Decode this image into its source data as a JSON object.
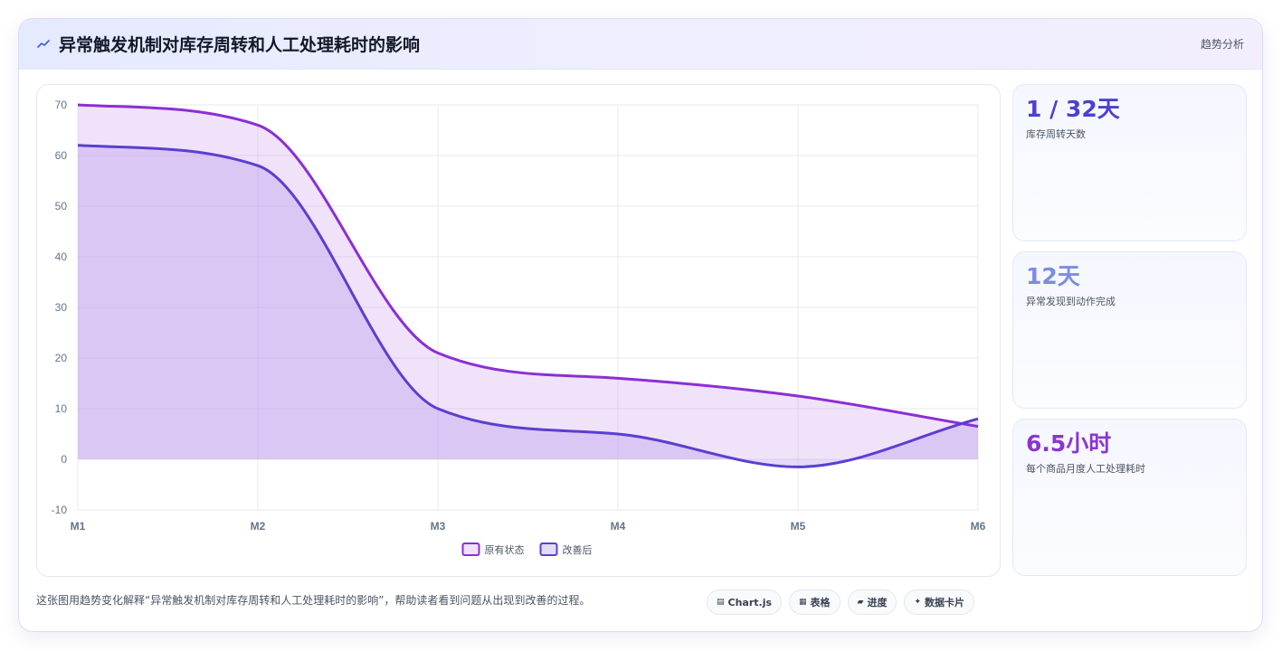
{
  "header": {
    "title": "异常触发机制对库存周转和人工处理耗时的影响",
    "tag": "趋势分析",
    "icon": "trend-line-icon"
  },
  "stats": [
    {
      "value": "1 / 32天",
      "label": "库存周转天数",
      "color": "#4c3fd1"
    },
    {
      "value": "12天",
      "label": "异常发现到动作完成",
      "color": "#7c8ce0"
    },
    {
      "value": "6.5小时",
      "label": "每个商品月度人工处理耗时",
      "color": "#8b36d0"
    }
  ],
  "footer": {
    "description": "这张图用趋势变化解释“异常触发机制对库存周转和人工处理耗时的影响”，帮助读者看到问题从出现到改善的过程。",
    "chips": [
      {
        "icon": "▤",
        "icon_name": "chart-icon",
        "label": "Chart.js"
      },
      {
        "icon": "▦",
        "icon_name": "table-icon",
        "label": "表格"
      },
      {
        "icon": "▰",
        "icon_name": "progress-icon",
        "label": "进度"
      },
      {
        "icon": "✦",
        "icon_name": "data-card-icon",
        "label": "数据卡片"
      }
    ]
  },
  "chart_data": {
    "type": "area",
    "categories": [
      "M1",
      "M2",
      "M3",
      "M4",
      "M5",
      "M6"
    ],
    "series": [
      {
        "name": "原有状态",
        "values": [
          70,
          66,
          21,
          16,
          12.5,
          6.5
        ],
        "color": "#8b2fd4",
        "fill": "rgba(200,150,235,0.28)"
      },
      {
        "name": "改善后",
        "values": [
          62,
          58,
          10,
          5,
          -1.5,
          8
        ],
        "color": "#5a3fd0",
        "fill": "rgba(180,150,235,0.35)"
      }
    ],
    "ylim": [
      -10,
      70
    ],
    "yticks": [
      -10,
      0,
      10,
      20,
      30,
      40,
      50,
      60,
      70
    ],
    "grid": true,
    "legend": "bottom"
  }
}
